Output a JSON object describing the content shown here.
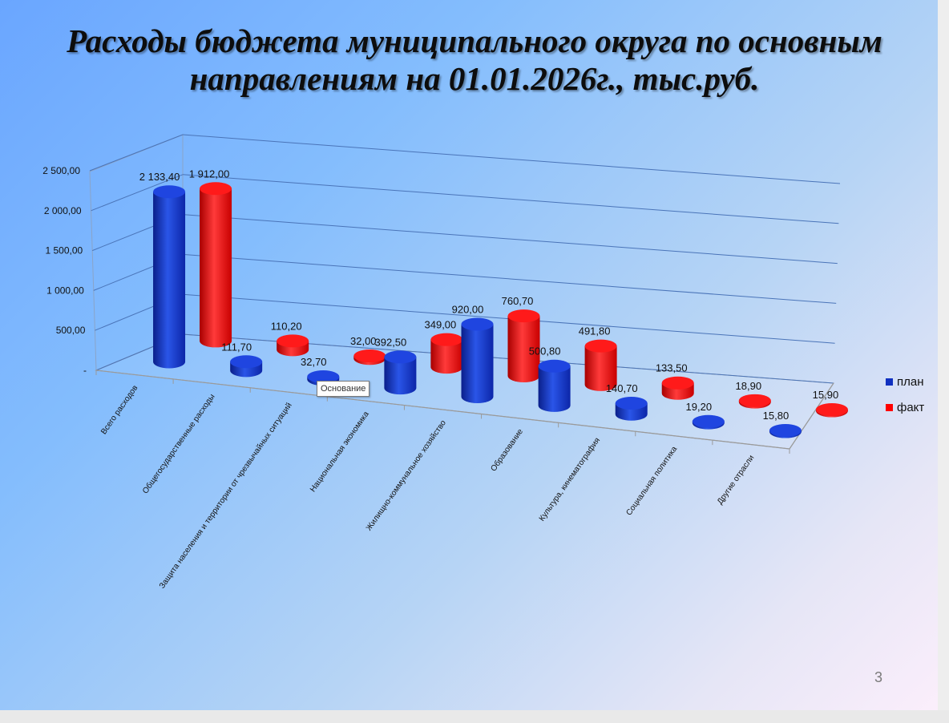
{
  "title": {
    "line1": "Расходы бюджета муниципального округа по основным",
    "line2": "направлениям на 01.01.2026г., тыс.руб."
  },
  "page_number": "3",
  "tooltip": "Основание",
  "colors": {
    "plan": "#1030c0",
    "fact": "#ff0000",
    "grid": "#4a74b8"
  },
  "legend": [
    {
      "label": "план",
      "color": "#1030c0"
    },
    {
      "label": "факт",
      "color": "#ff0000"
    }
  ],
  "chart_data": {
    "type": "bar",
    "style": "3d-cylinder",
    "title": "Расходы бюджета муниципального округа по основным направлениям на 01.01.2026г., тыс.руб.",
    "categories": [
      "Всего расходов",
      "Общегосударственные расходы",
      "Защита населения и территории от чрезвычайных ситуаций",
      "Национальная экономика",
      "Жилищно-коммунальное хозяйство",
      "Образование",
      "Культура, кинематография",
      "Социальная политика",
      "Другие отрасли"
    ],
    "series": [
      {
        "name": "план",
        "values": [
          2133.4,
          111.7,
          32.7,
          392.5,
          920.0,
          500.8,
          140.7,
          19.2,
          15.8
        ],
        "labels": [
          "2 133,40",
          "111,70",
          "32,70",
          "392,50",
          "920,00",
          "500,80",
          "140,70",
          "19,20",
          "15,80"
        ]
      },
      {
        "name": "факт",
        "values": [
          1912.0,
          110.2,
          32.0,
          349.0,
          760.7,
          491.8,
          133.5,
          18.9,
          15.9
        ],
        "labels": [
          "1 912,00",
          "110,20",
          "32,00",
          "349,00",
          "760,70",
          "491,80",
          "133,50",
          "18,90",
          "15,90"
        ]
      }
    ],
    "yaxis": {
      "ticks": [
        0,
        500,
        1000,
        1500,
        2000,
        2500
      ],
      "tick_labels": [
        "-",
        "500,00",
        "1 000,00",
        "1 500,00",
        "2 000,00",
        "2 500,00"
      ]
    },
    "ylim": [
      0,
      2500
    ],
    "grid": true,
    "legend_position": "right"
  }
}
